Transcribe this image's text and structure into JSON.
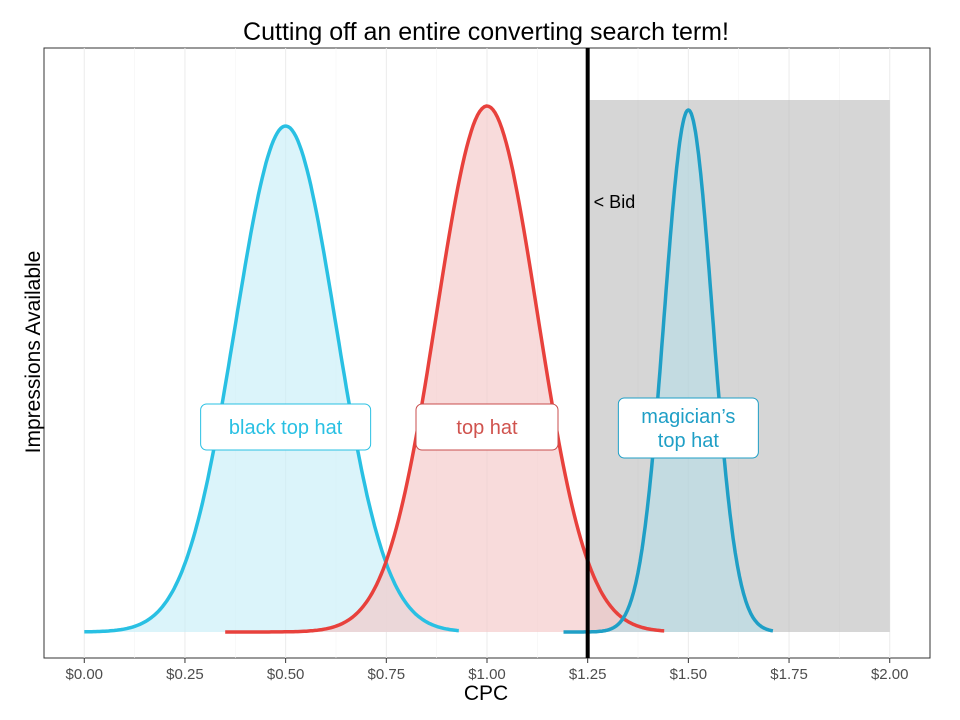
{
  "chart_data": {
    "type": "area",
    "title": "Cutting off an entire converting search term!",
    "xlabel": "CPC",
    "ylabel": "Impressions Available",
    "xlim": [
      -0.1,
      2.1
    ],
    "ylim": [
      0,
      1.08
    ],
    "x_ticks": [
      0,
      0.25,
      0.5,
      0.75,
      1.0,
      1.25,
      1.5,
      1.75,
      2.0
    ],
    "x_tick_labels": [
      "$0.00",
      "$0.25",
      "$0.50",
      "$0.75",
      "$1.00",
      "$1.25",
      "$1.50",
      "$1.75",
      "$2.00"
    ],
    "grid": true,
    "legend": "none",
    "series": [
      {
        "name": "black top hat",
        "label_lines": [
          "black top hat"
        ],
        "color": "#29c0e3",
        "fill": "#c8eef8",
        "mean": 0.5,
        "sd": 0.125,
        "x_range": [
          0.0,
          0.93
        ],
        "x": [
          0.0,
          0.1,
          0.2,
          0.3,
          0.4,
          0.5,
          0.6,
          0.7,
          0.8,
          0.9,
          0.93
        ],
        "y": [
          0.0,
          0.04,
          0.24,
          0.61,
          0.92,
          0.96,
          0.92,
          0.61,
          0.24,
          0.06,
          0.02
        ],
        "label_at": [
          0.5,
          0.38
        ]
      },
      {
        "name": "top hat",
        "label_lines": [
          "top hat"
        ],
        "color": "#e8413c",
        "fill": "#f5c8c8",
        "mean": 1.0,
        "sd": 0.125,
        "x_range": [
          0.35,
          1.44
        ],
        "x": [
          0.35,
          0.5,
          0.6,
          0.7,
          0.8,
          0.9,
          1.0,
          1.1,
          1.2,
          1.3,
          1.44
        ],
        "y": [
          0.0,
          0.01,
          0.04,
          0.11,
          0.36,
          0.74,
          0.99,
          0.74,
          0.36,
          0.11,
          0.01
        ],
        "label_at": [
          1.0,
          0.38
        ]
      },
      {
        "name": "magician's top hat",
        "label_lines": [
          "magician’s",
          "top hat"
        ],
        "color": "#1f9fc6",
        "fill": "#b9dde6",
        "mean": 1.5,
        "sd": 0.06,
        "x_range": [
          1.19,
          1.71
        ],
        "x": [
          1.19,
          1.3,
          1.35,
          1.4,
          1.45,
          1.5,
          1.55,
          1.6,
          1.65,
          1.71
        ],
        "y": [
          0.0,
          0.01,
          0.04,
          0.25,
          0.71,
          0.99,
          0.71,
          0.25,
          0.04,
          0.0
        ],
        "label_at": [
          1.5,
          0.37
        ]
      }
    ],
    "bid": {
      "x": 1.25,
      "label": "< Bid"
    },
    "cutoff_region": {
      "x": [
        1.25,
        2.0
      ],
      "y": [
        0,
        1.0
      ],
      "color": "#b5b5b5"
    },
    "peak": 0.95
  }
}
